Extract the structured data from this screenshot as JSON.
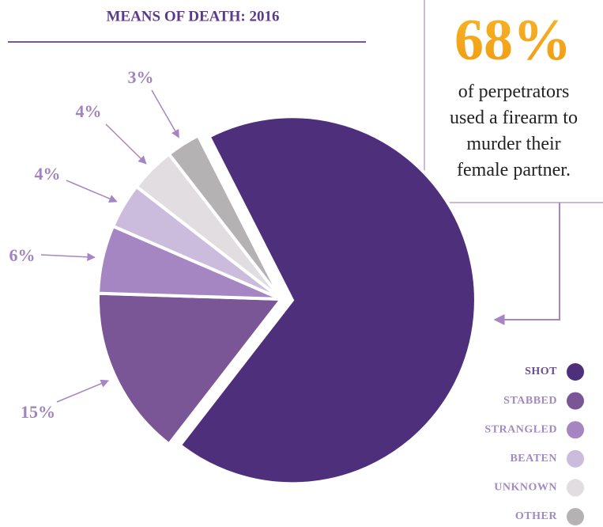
{
  "chart_data": {
    "type": "pie",
    "title": "MEANS OF DEATH: 2016",
    "categories": [
      "SHOT",
      "STABBED",
      "STRANGLED",
      "BEATEN",
      "UNKNOWN",
      "OTHER"
    ],
    "values": [
      68,
      15,
      6,
      4,
      4,
      3
    ],
    "value_labels": [
      "68%",
      "15%",
      "6%",
      "4%",
      "4%",
      "3%"
    ],
    "colors": [
      "#4e2f7c",
      "#7a5696",
      "#a686c2",
      "#cbbbdd",
      "#e1dde0",
      "#b5b2b3"
    ],
    "annotation": "of perpetrators used a firearm to murder their female partner."
  }
}
